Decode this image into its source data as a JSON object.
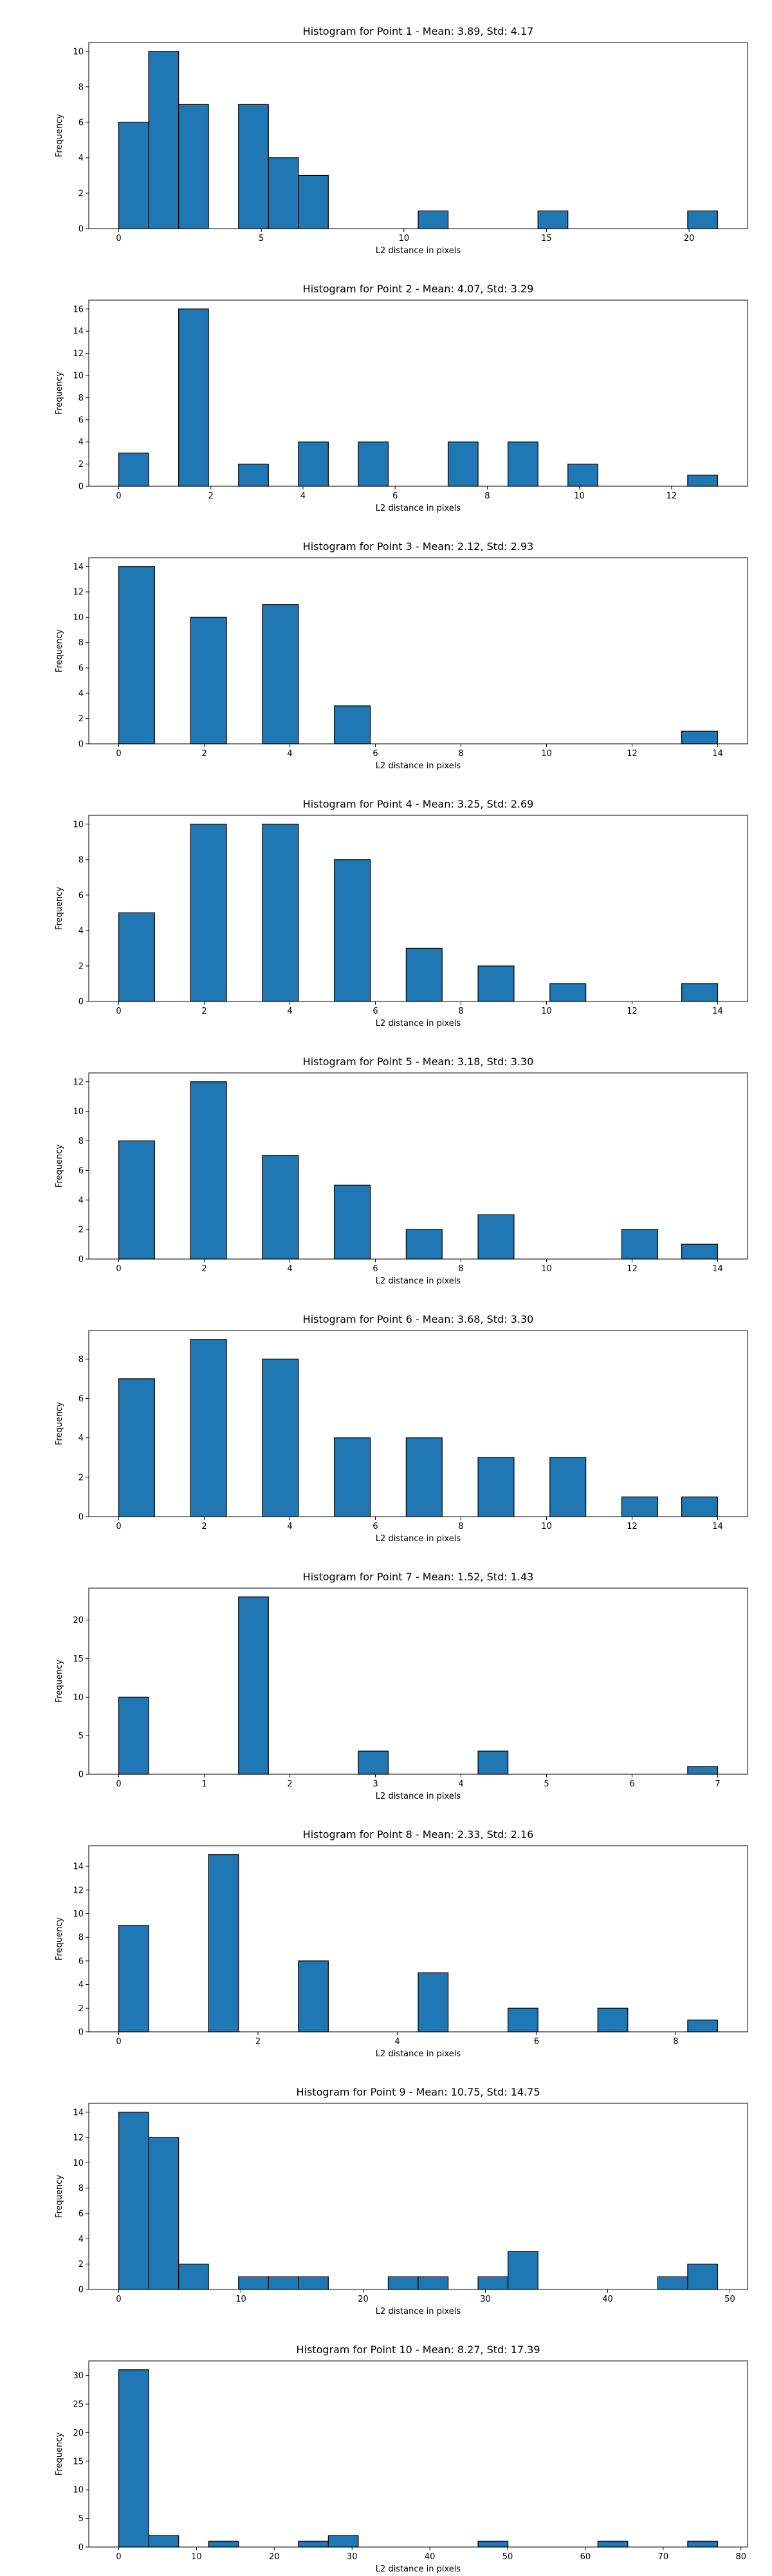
{
  "chart_data": [
    {
      "type": "bar",
      "title": "Histogram for Point 1 - Mean: 3.89, Std: 4.17",
      "xlabel": "L2 distance in pixels",
      "ylabel": "Frequency",
      "xlim": [
        -1.05,
        22.05
      ],
      "ylim": [
        0,
        10.5
      ],
      "xticks": [
        0,
        5,
        10,
        15,
        20
      ],
      "yticks": [
        0,
        2,
        4,
        6,
        8,
        10
      ],
      "bins": [
        [
          0,
          1.05,
          6
        ],
        [
          1.05,
          2.1,
          10
        ],
        [
          2.1,
          3.15,
          7
        ],
        [
          4.2,
          5.25,
          7
        ],
        [
          5.25,
          6.3,
          4
        ],
        [
          6.3,
          7.35,
          3
        ],
        [
          10.5,
          11.55,
          1
        ],
        [
          14.7,
          15.75,
          1
        ],
        [
          19.95,
          21.0,
          1
        ]
      ]
    },
    {
      "type": "bar",
      "title": "Histogram for Point 2 - Mean: 4.07, Std: 3.29",
      "xlabel": "L2 distance in pixels",
      "ylabel": "Frequency",
      "xlim": [
        -0.65,
        13.65
      ],
      "ylim": [
        0,
        16.8
      ],
      "xticks": [
        0,
        2,
        4,
        6,
        8,
        10,
        12
      ],
      "yticks": [
        0,
        2,
        4,
        6,
        8,
        10,
        12,
        14,
        16
      ],
      "bins": [
        [
          0,
          0.65,
          3
        ],
        [
          1.3,
          1.95,
          16
        ],
        [
          2.6,
          3.25,
          2
        ],
        [
          3.9,
          4.55,
          4
        ],
        [
          5.2,
          5.85,
          4
        ],
        [
          7.15,
          7.8,
          4
        ],
        [
          8.45,
          9.1,
          4
        ],
        [
          9.75,
          10.4,
          2
        ],
        [
          12.35,
          13.0,
          1
        ]
      ]
    },
    {
      "type": "bar",
      "title": "Histogram for Point 3 - Mean: 2.12, Std: 2.93",
      "xlabel": "L2 distance in pixels",
      "ylabel": "Frequency",
      "xlim": [
        -0.7,
        14.7
      ],
      "ylim": [
        0,
        14.7
      ],
      "xticks": [
        0,
        2,
        4,
        6,
        8,
        10,
        12,
        14
      ],
      "yticks": [
        0,
        2,
        4,
        6,
        8,
        10,
        12,
        14
      ],
      "bins": [
        [
          0,
          0.84,
          14
        ],
        [
          1.68,
          2.52,
          10
        ],
        [
          3.36,
          4.2,
          11
        ],
        [
          5.04,
          5.88,
          3
        ],
        [
          13.16,
          14.0,
          1
        ],
        [
          14.0,
          14.0,
          1
        ]
      ]
    },
    {
      "type": "bar",
      "title": "Histogram for Point 4 - Mean: 3.25, Std: 2.69",
      "xlabel": "L2 distance in pixels",
      "ylabel": "Frequency",
      "xlim": [
        -0.7,
        14.7
      ],
      "ylim": [
        0,
        10.5
      ],
      "xticks": [
        0,
        2,
        4,
        6,
        8,
        10,
        12,
        14
      ],
      "yticks": [
        0,
        2,
        4,
        6,
        8,
        10
      ],
      "bins": [
        [
          0,
          0.84,
          5
        ],
        [
          1.68,
          2.52,
          10
        ],
        [
          3.36,
          4.2,
          10
        ],
        [
          5.04,
          5.88,
          8
        ],
        [
          6.72,
          7.56,
          3
        ],
        [
          8.4,
          9.24,
          2
        ],
        [
          10.08,
          10.92,
          1
        ],
        [
          13.16,
          14.0,
          1
        ]
      ]
    },
    {
      "type": "bar",
      "title": "Histogram for Point 5 - Mean: 3.18, Std: 3.30",
      "xlabel": "L2 distance in pixels",
      "ylabel": "Frequency",
      "xlim": [
        -0.7,
        14.7
      ],
      "ylim": [
        0,
        12.6
      ],
      "xticks": [
        0,
        2,
        4,
        6,
        8,
        10,
        12,
        14
      ],
      "yticks": [
        0,
        2,
        4,
        6,
        8,
        10,
        12
      ],
      "bins": [
        [
          0,
          0.84,
          8
        ],
        [
          1.68,
          2.52,
          12
        ],
        [
          3.36,
          4.2,
          7
        ],
        [
          5.04,
          5.88,
          5
        ],
        [
          6.72,
          7.56,
          2
        ],
        [
          8.4,
          9.24,
          3
        ],
        [
          11.76,
          12.6,
          2
        ],
        [
          13.16,
          14.0,
          1
        ]
      ]
    },
    {
      "type": "bar",
      "title": "Histogram for Point 6 - Mean: 3.68, Std: 3.30",
      "xlabel": "L2 distance in pixels",
      "ylabel": "Frequency",
      "xlim": [
        -0.7,
        14.7
      ],
      "ylim": [
        0,
        9.45
      ],
      "xticks": [
        0,
        2,
        4,
        6,
        8,
        10,
        12,
        14
      ],
      "yticks": [
        0,
        2,
        4,
        6,
        8
      ],
      "bins": [
        [
          0,
          0.84,
          7
        ],
        [
          1.68,
          2.52,
          9
        ],
        [
          3.36,
          4.2,
          8
        ],
        [
          5.04,
          5.88,
          4
        ],
        [
          6.72,
          7.56,
          4
        ],
        [
          8.4,
          9.24,
          3
        ],
        [
          10.08,
          10.92,
          3
        ],
        [
          11.76,
          12.6,
          1
        ],
        [
          13.16,
          14.0,
          1
        ]
      ]
    },
    {
      "type": "bar",
      "title": "Histogram for Point 7 - Mean: 1.52, Std: 1.43",
      "xlabel": "L2 distance in pixels",
      "ylabel": "Frequency",
      "xlim": [
        -0.35,
        7.35
      ],
      "ylim": [
        0,
        24.15
      ],
      "xticks": [
        0,
        1,
        2,
        3,
        4,
        5,
        6,
        7
      ],
      "yticks": [
        0,
        5,
        10,
        15,
        20
      ],
      "bins": [
        [
          0,
          0.35,
          10
        ],
        [
          1.4,
          1.75,
          23
        ],
        [
          2.8,
          3.15,
          3
        ],
        [
          4.2,
          4.55,
          3
        ],
        [
          6.65,
          7.0,
          1
        ]
      ]
    },
    {
      "type": "bar",
      "title": "Histogram for Point 8 - Mean: 2.33, Std: 2.16",
      "xlabel": "L2 distance in pixels",
      "ylabel": "Frequency",
      "xlim": [
        -0.43,
        9.03
      ],
      "ylim": [
        0,
        15.75
      ],
      "xticks": [
        0,
        2,
        4,
        6,
        8
      ],
      "yticks": [
        0,
        2,
        4,
        6,
        8,
        10,
        12,
        14
      ],
      "bins": [
        [
          0,
          0.43,
          9
        ],
        [
          1.29,
          1.72,
          15
        ],
        [
          2.58,
          3.01,
          6
        ],
        [
          4.3,
          4.73,
          5
        ],
        [
          5.59,
          6.02,
          2
        ],
        [
          6.88,
          7.31,
          2
        ],
        [
          8.17,
          8.6,
          1
        ]
      ]
    },
    {
      "type": "bar",
      "title": "Histogram for Point 9 - Mean: 10.75, Std: 14.75",
      "xlabel": "L2 distance in pixels",
      "ylabel": "Frequency",
      "xlim": [
        -2.45,
        51.45
      ],
      "ylim": [
        0,
        14.7
      ],
      "xticks": [
        0,
        10,
        20,
        30,
        40,
        50
      ],
      "yticks": [
        0,
        2,
        4,
        6,
        8,
        10,
        12,
        14
      ],
      "bins": [
        [
          0,
          2.45,
          14
        ],
        [
          2.45,
          4.9,
          12
        ],
        [
          4.9,
          7.35,
          2
        ],
        [
          9.8,
          12.25,
          1
        ],
        [
          12.25,
          14.7,
          1
        ],
        [
          14.7,
          17.15,
          1
        ],
        [
          22.05,
          24.5,
          1
        ],
        [
          24.5,
          26.95,
          1
        ],
        [
          29.4,
          31.85,
          1
        ],
        [
          31.85,
          34.3,
          3
        ],
        [
          44.1,
          46.55,
          1
        ],
        [
          46.55,
          49.0,
          2
        ]
      ]
    },
    {
      "type": "bar",
      "title": "Histogram for Point 10 - Mean: 8.27, Std: 17.39",
      "xlabel": "L2 distance in pixels",
      "ylabel": "Frequency",
      "xlim": [
        -3.85,
        80.85
      ],
      "ylim": [
        0,
        32.55
      ],
      "xticks": [
        0,
        10,
        20,
        30,
        40,
        50,
        60,
        70,
        80
      ],
      "yticks": [
        0,
        5,
        10,
        15,
        20,
        25,
        30
      ],
      "bins": [
        [
          0,
          3.85,
          31
        ],
        [
          3.85,
          7.7,
          2
        ],
        [
          11.55,
          15.4,
          1
        ],
        [
          23.1,
          26.95,
          1
        ],
        [
          26.95,
          30.8,
          2
        ],
        [
          46.2,
          50.05,
          1
        ],
        [
          61.6,
          65.45,
          1
        ],
        [
          73.15,
          77.0,
          1
        ]
      ]
    }
  ]
}
